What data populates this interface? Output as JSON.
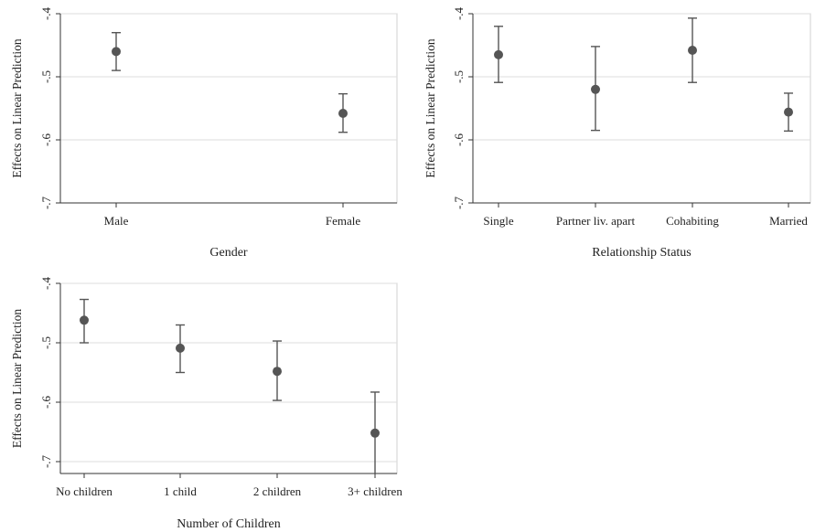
{
  "chart_data": [
    {
      "type": "scatter",
      "title": "",
      "xlabel": "Gender",
      "ylabel": "Effects on Linear Prediction",
      "ylim": [
        -0.7,
        -0.4
      ],
      "yticks": [
        -0.4,
        -0.5,
        -0.6,
        -0.7
      ],
      "ytick_labels": [
        "-.4",
        "-.5",
        "-.6",
        "-.7"
      ],
      "categories": [
        "Male",
        "Female"
      ],
      "values": [
        -0.46,
        -0.558
      ],
      "ci_low": [
        -0.49,
        -0.588
      ],
      "ci_high": [
        -0.43,
        -0.527
      ],
      "grid": true
    },
    {
      "type": "scatter",
      "title": "",
      "xlabel": "Relationship Status",
      "ylabel": "Effects on Linear Prediction",
      "ylim": [
        -0.7,
        -0.4
      ],
      "yticks": [
        -0.4,
        -0.5,
        -0.6,
        -0.7
      ],
      "ytick_labels": [
        "-.4",
        "-.5",
        "-.6",
        "-.7"
      ],
      "categories": [
        "Single",
        "Partner liv. apart",
        "Cohabiting",
        "Married"
      ],
      "values": [
        -0.465,
        -0.52,
        -0.458,
        -0.556
      ],
      "ci_low": [
        -0.509,
        -0.585,
        -0.509,
        -0.586
      ],
      "ci_high": [
        -0.42,
        -0.452,
        -0.407,
        -0.526
      ],
      "grid": true
    },
    {
      "type": "scatter",
      "title": "",
      "xlabel": "Number of Children",
      "ylabel": "Effects on Linear Prediction",
      "ylim": [
        -0.72,
        -0.4
      ],
      "yticks": [
        -0.4,
        -0.5,
        -0.6,
        -0.7
      ],
      "ytick_labels": [
        "-.4",
        "-.5",
        "-.6",
        "-.7"
      ],
      "categories": [
        "No children",
        "1 child",
        "2 children",
        "3+ children"
      ],
      "values": [
        -0.462,
        -0.509,
        -0.548,
        -0.652
      ],
      "ci_low": [
        -0.5,
        -0.55,
        -0.597,
        -0.72
      ],
      "ci_high": [
        -0.427,
        -0.47,
        -0.497,
        -0.583
      ],
      "grid": true
    }
  ]
}
